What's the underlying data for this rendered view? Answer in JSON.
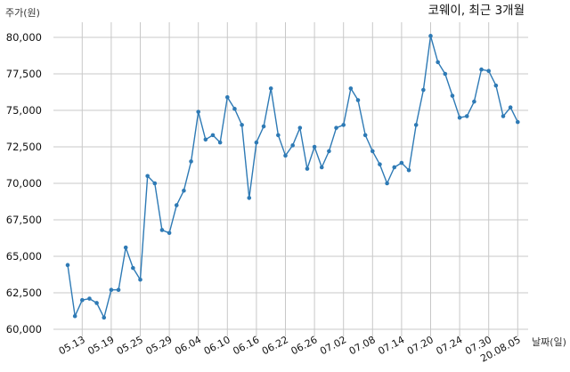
{
  "chart_data": {
    "type": "line",
    "title": "코웨이, 최근 3개월",
    "ylabel": "주가(원)",
    "xlabel": "날짜(일)",
    "ylim": [
      60000,
      80000
    ],
    "yticks": [
      60000,
      62500,
      65000,
      67500,
      70000,
      72500,
      75000,
      77500,
      80000
    ],
    "ytick_labels": [
      "60,000",
      "62,500",
      "65,000",
      "67,500",
      "70,000",
      "72,500",
      "75,000",
      "77,500",
      "80,000"
    ],
    "xtick_labels": [
      "05.13",
      "05.19",
      "05.25",
      "05.29",
      "06.04",
      "06.10",
      "06.16",
      "06.22",
      "06.26",
      "07.02",
      "07.08",
      "07.14",
      "07.20",
      "07.24",
      "07.30",
      "20.08.05"
    ],
    "xtick_indices": [
      2,
      6,
      10,
      14,
      18,
      22,
      26,
      30,
      34,
      38,
      42,
      46,
      50,
      54,
      58,
      62
    ],
    "grid": true,
    "color": "#2e7ab5",
    "values": [
      64400,
      60900,
      62000,
      62100,
      61800,
      60800,
      62700,
      62700,
      65600,
      64200,
      63400,
      70500,
      70000,
      66800,
      66600,
      68500,
      69500,
      71500,
      74900,
      73000,
      73300,
      72800,
      75900,
      75100,
      74000,
      69000,
      72800,
      73900,
      76500,
      73300,
      71900,
      72600,
      73800,
      71000,
      72500,
      71100,
      72200,
      73800,
      74000,
      76500,
      75700,
      73300,
      72200,
      71300,
      70000,
      71100,
      71400,
      70900,
      74000,
      76400,
      80100,
      78300,
      77500,
      76000,
      74500,
      74600,
      75600,
      77800,
      77700,
      76700,
      74600,
      75200,
      74200
    ]
  }
}
